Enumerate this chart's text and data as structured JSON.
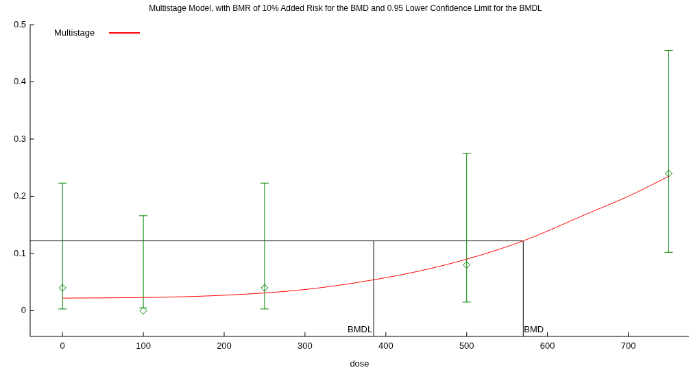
{
  "chart_data": {
    "type": "scatter",
    "title": "Multistage Model, with BMR of 10% Added Risk for the BMD and 0.95 Lower Confidence Limit for the BMDL",
    "xlabel": "dose",
    "xlim": [
      -40,
      775
    ],
    "ylim": [
      -0.045,
      0.5
    ],
    "xticks": [
      0,
      100,
      200,
      300,
      400,
      500,
      600,
      700
    ],
    "yticks": [
      0,
      0.1,
      0.2,
      0.3,
      0.4,
      0.5
    ],
    "legend": "top left",
    "grid": false,
    "series": [
      {
        "color": "#008000",
        "marker": "diamond",
        "x": [
          0,
          100,
          250,
          500,
          750
        ],
        "values": [
          0.04,
          0,
          0.04,
          0.08,
          0.24
        ],
        "errors": [
          [
            0.003,
            0.223
          ],
          [
            0.005,
            0.166
          ],
          [
            0.003,
            0.223
          ],
          [
            0.015,
            0.275
          ],
          [
            0.102,
            0.455
          ]
        ]
      },
      {
        "type": "line",
        "name": "Multistage",
        "color": "#ff0000",
        "marker": "none",
        "x": [
          0,
          100,
          200,
          300,
          385,
          450,
          500,
          570,
          650,
          700,
          750
        ],
        "values": [
          0.022,
          0.023,
          0.027,
          0.037,
          0.054,
          0.072,
          0.09,
          0.122,
          0.17,
          0.2,
          0.235
        ]
      }
    ],
    "ref_lines": [
      {
        "axis": "y",
        "value": 0.122,
        "label": null,
        "color": "#000000"
      },
      {
        "axis": "x",
        "value": 385,
        "label": "BMDL",
        "color": "#000000"
      },
      {
        "axis": "x",
        "value": 570,
        "label": "BMD",
        "color": "#000000"
      }
    ]
  }
}
